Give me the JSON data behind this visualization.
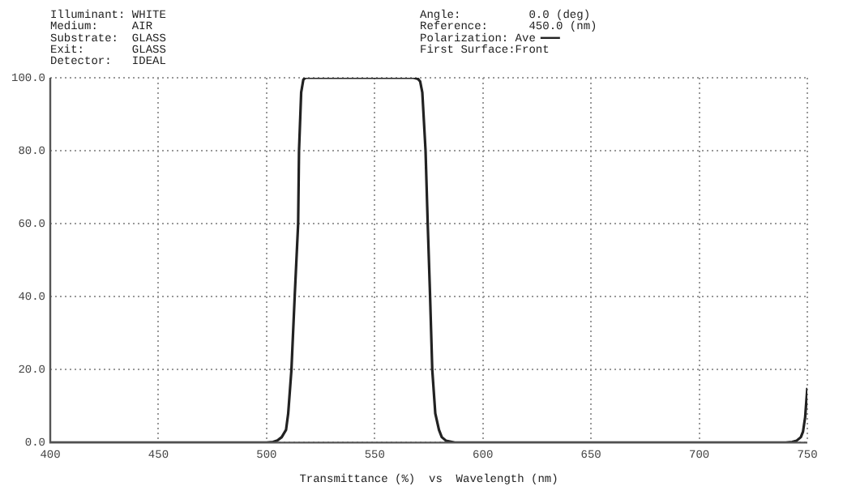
{
  "chart_data": {
    "type": "line",
    "xlabel": "Transmittance (%)  vs  Wavelength (nm)",
    "annotations": [
      "Illuminant: WHITE",
      "Medium:     AIR",
      "Substrate:  GLASS",
      "Exit:       GLASS",
      "Detector:   IDEAL",
      "Angle:          0.0 (deg)",
      "Reference:      450.0 (nm)",
      "Polarization: Ave",
      "First Surface:Front"
    ],
    "series": [
      {
        "color": "#222222",
        "x": [
          400,
          450,
          500,
          503,
          505,
          507,
          509,
          510,
          511.5,
          513,
          514.6,
          515,
          516,
          517,
          518,
          520,
          550,
          568,
          570,
          571,
          572,
          573.5,
          574.5,
          575.6,
          576.6,
          578,
          579.7,
          581,
          583,
          587,
          600,
          650,
          700,
          740,
          743,
          745,
          747,
          748,
          749,
          750
        ],
        "values": [
          0,
          0,
          0,
          0.2,
          0.6,
          1.5,
          3.5,
          8,
          20,
          40,
          60,
          80,
          96,
          99.5,
          100,
          100,
          100,
          100,
          99.7,
          99,
          96,
          80,
          60,
          40,
          20,
          8,
          3.5,
          1.5,
          0.5,
          0,
          0,
          0,
          0,
          0,
          0.2,
          0.5,
          1.5,
          3,
          7,
          15
        ]
      }
    ],
    "xlim": [
      400,
      750
    ],
    "xticks": [
      400,
      450,
      500,
      550,
      600,
      650,
      700,
      750
    ],
    "ylim": [
      0,
      100
    ],
    "yticks": [
      {
        "value": 0,
        "label": "0.0"
      },
      {
        "value": 20,
        "label": "20.0"
      },
      {
        "value": 40,
        "label": "40.0"
      },
      {
        "value": 60,
        "label": "60.0"
      },
      {
        "value": 80,
        "label": "80.0"
      },
      {
        "value": 100,
        "label": "100.0"
      }
    ],
    "grid": true,
    "marker": "none",
    "line_style": "solid"
  }
}
